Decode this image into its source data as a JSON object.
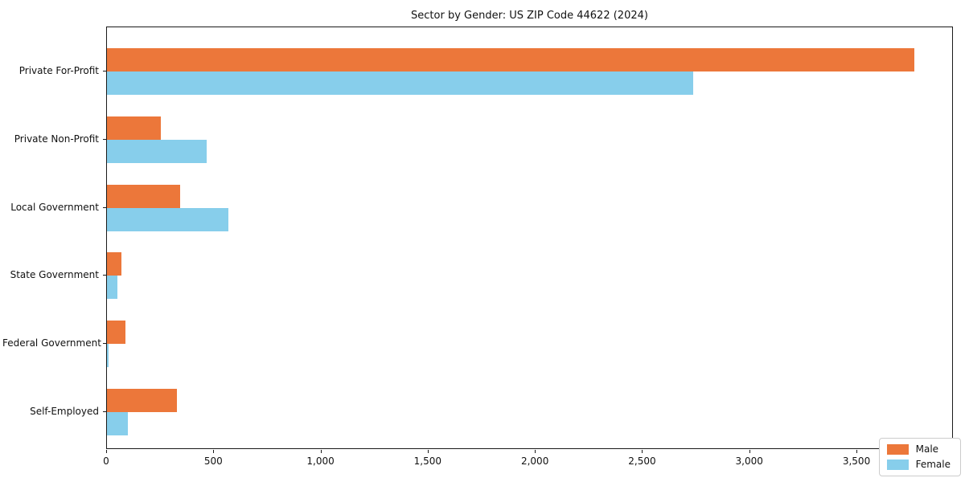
{
  "chart_data": {
    "type": "bar",
    "orientation": "horizontal",
    "title": "Sector by Gender: US ZIP Code 44622 (2024)",
    "categories": [
      "Private For-Profit",
      "Private Non-Profit",
      "Local Government",
      "State Government",
      "Federal Government",
      "Self-Employed"
    ],
    "series": [
      {
        "name": "Male",
        "color": "#ec773a",
        "values": [
          3765,
          250,
          340,
          66,
          88,
          325
        ]
      },
      {
        "name": "Female",
        "color": "#87ceeb",
        "values": [
          2735,
          467,
          566,
          50,
          6,
          96
        ]
      }
    ],
    "xlabel": "",
    "ylabel": "",
    "xlim": [
      0,
      3950
    ],
    "xticks": [
      0,
      500,
      1000,
      1500,
      2000,
      2500,
      3000,
      3500
    ],
    "xtick_labels": [
      "0",
      "500",
      "1,000",
      "1,500",
      "2,000",
      "2,500",
      "3,000",
      "3,500"
    ],
    "grid": false,
    "legend": {
      "position": "lower right",
      "entries": [
        {
          "label": "Male",
          "color": "#ec773a"
        },
        {
          "label": "Female",
          "color": "#87ceeb"
        }
      ]
    }
  }
}
